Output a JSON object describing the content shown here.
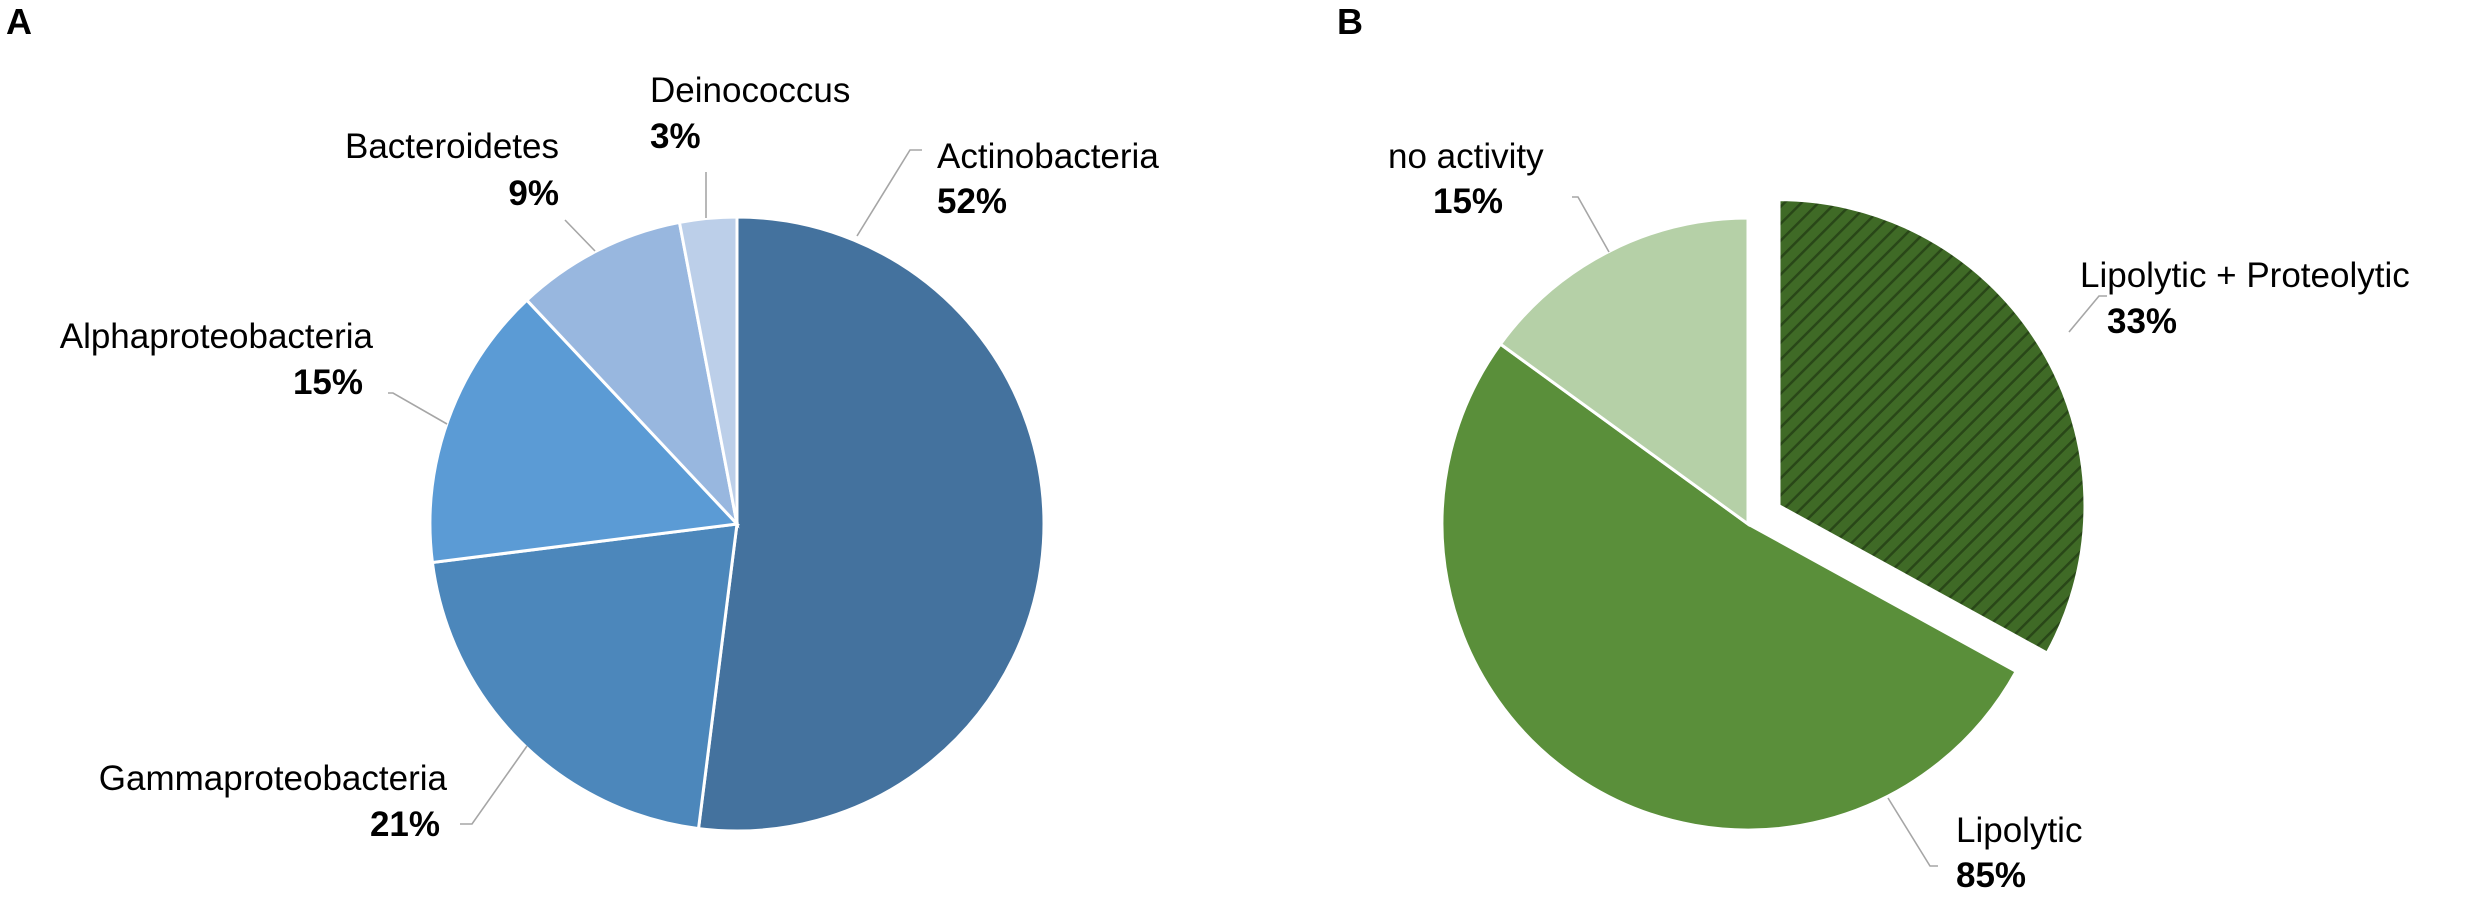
{
  "chart_data": [
    {
      "panel": "A",
      "type": "pie",
      "slices": [
        {
          "label": "Actinobacteria",
          "value": 52,
          "pct_label": "52%",
          "color": "#44729e"
        },
        {
          "label": "Gammaproteobacteria",
          "value": 21,
          "pct_label": "21%",
          "color": "#4c87bb"
        },
        {
          "label": "Alphaproteobacteria",
          "value": 15,
          "pct_label": "15%",
          "color": "#5b9bd5"
        },
        {
          "label": "Bacteroidetes",
          "value": 9,
          "pct_label": "9%",
          "color": "#98b7df"
        },
        {
          "label": "Deinococcus",
          "value": 3,
          "pct_label": "3%",
          "color": "#bccfe9"
        }
      ],
      "start_angle": "12 o'clock",
      "direction": "clockwise"
    },
    {
      "panel": "B",
      "type": "pie",
      "slices": [
        {
          "label": "Lipolytic + Proteolytic",
          "value": 33,
          "pct_label": "33%",
          "color": "#3f6a26",
          "pattern": "diagonal-hatch",
          "exploded": true
        },
        {
          "label": "Lipolytic",
          "value": 85,
          "pct_label": "85%",
          "color": "#5a8f3a"
        },
        {
          "label": "no activity",
          "value": 15,
          "pct_label": "15%",
          "color": "#b5d0a7"
        }
      ],
      "note": "Lipolytic slice spans 85% of the pie and includes the exploded 33% Lipolytic + Proteolytic sub-slice; no activity spans the remaining 15%"
    }
  ]
}
